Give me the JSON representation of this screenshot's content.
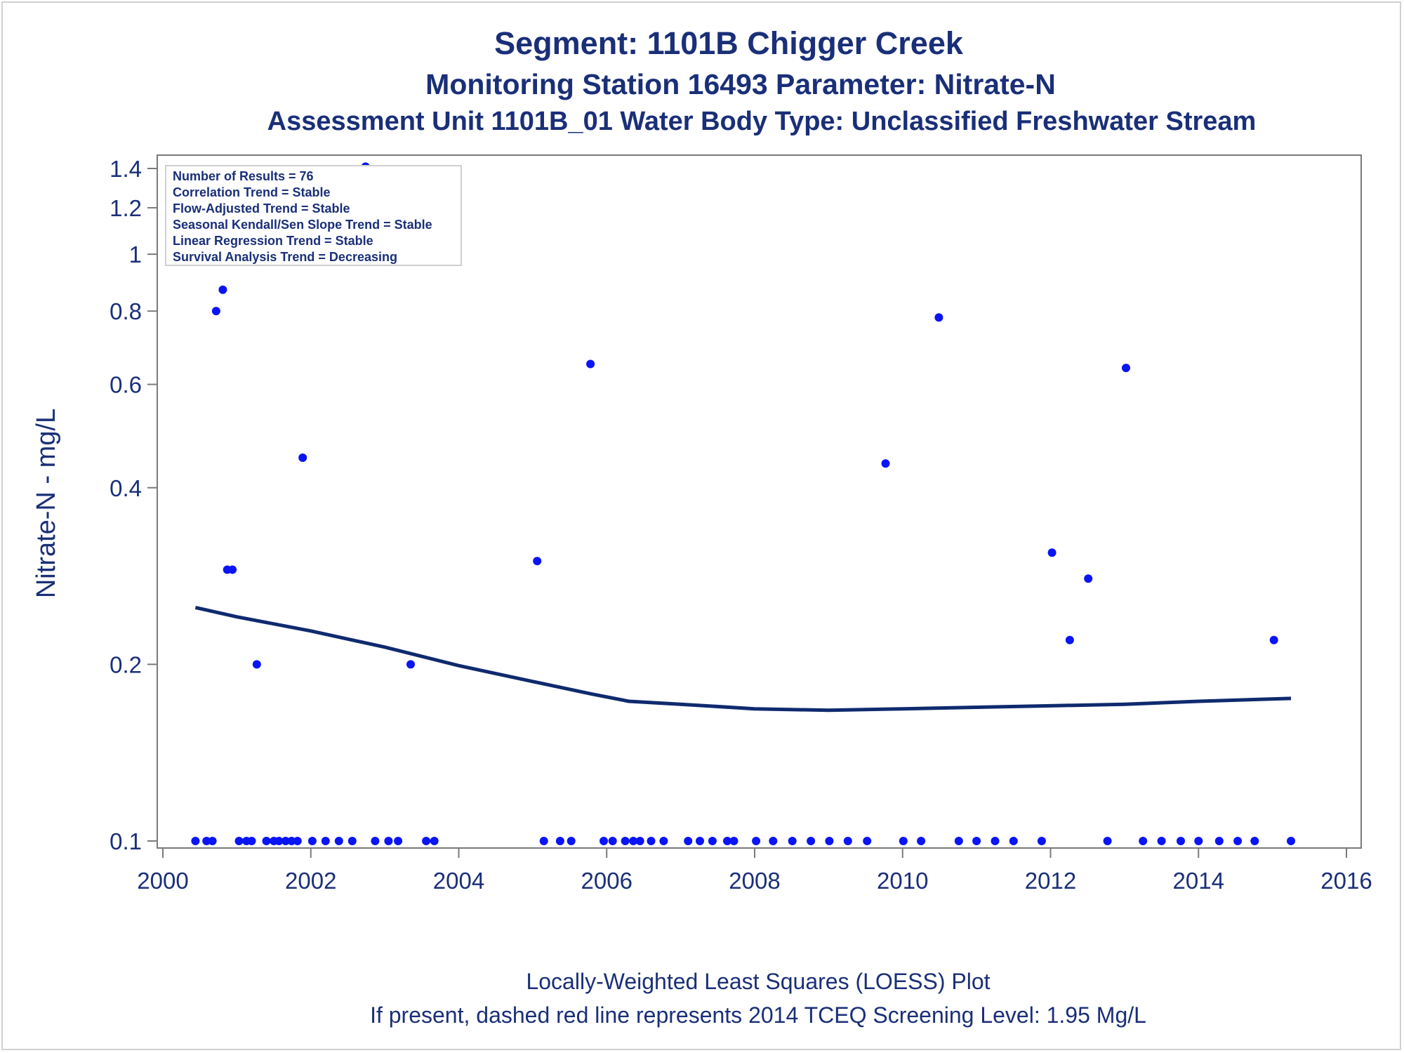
{
  "titles": {
    "line1": "Segment: 1101B  Chigger Creek",
    "line2": "Monitoring Station 16493 Parameter: Nitrate-N",
    "line3": "Assessment Unit 1101B_01   Water Body Type: Unclassified Freshwater Stream"
  },
  "footnotes": {
    "line1": "Locally-Weighted Least Squares (LOESS) Plot",
    "line2": "If present, dashed red line represents 2014 TCEQ Screening Level: 1.95 Mg/L"
  },
  "stats_box": [
    "Number of Results = 76",
    "Correlation Trend = Stable",
    "Flow-Adjusted Trend = Stable",
    "Seasonal Kendall/Sen Slope Trend = Stable",
    "Linear Regression Trend = Stable",
    "Survival Analysis Trend = Decreasing"
  ],
  "colors": {
    "points": "#0a14f5",
    "loess": "#0f2a6e",
    "text": "#1a2f78",
    "axis": "#7a7a7a"
  },
  "chart_data": {
    "type": "scatter",
    "ylabel": "Nitrate-N - mg/L",
    "xlabel": "",
    "x_scale": "linear",
    "y_scale": "log",
    "xlim": [
      2000,
      2016
    ],
    "ylim": [
      0.0975,
      1.45
    ],
    "x_ticks": [
      2000,
      2002,
      2004,
      2006,
      2008,
      2010,
      2012,
      2014,
      2016
    ],
    "y_ticks": [
      0.1,
      0.2,
      0.4,
      0.6,
      0.8,
      1,
      1.2,
      1.4
    ],
    "y_tick_labels": [
      "0.1",
      "0.2",
      "0.4",
      "0.6",
      "0.8",
      "1",
      "1.2",
      "1.4"
    ],
    "grid": false,
    "series": [
      {
        "type": "scatter",
        "points": [
          [
            2000.44,
            0.1
          ],
          [
            2000.59,
            0.1
          ],
          [
            2000.67,
            0.1
          ],
          [
            2000.72,
            0.8
          ],
          [
            2000.81,
            0.87
          ],
          [
            2000.87,
            0.29
          ],
          [
            2000.94,
            0.29
          ],
          [
            2001.03,
            0.1
          ],
          [
            2001.13,
            0.1
          ],
          [
            2001.2,
            0.1
          ],
          [
            2001.27,
            0.2
          ],
          [
            2001.4,
            0.1
          ],
          [
            2001.5,
            0.1
          ],
          [
            2001.57,
            0.1
          ],
          [
            2001.66,
            0.1
          ],
          [
            2001.74,
            0.1
          ],
          [
            2001.82,
            0.1
          ],
          [
            2001.89,
            0.45
          ],
          [
            2002.02,
            0.1
          ],
          [
            2002.2,
            0.1
          ],
          [
            2002.38,
            0.1
          ],
          [
            2002.56,
            0.1
          ],
          [
            2002.74,
            1.41
          ],
          [
            2002.87,
            0.1
          ],
          [
            2003.05,
            0.1
          ],
          [
            2003.18,
            0.1
          ],
          [
            2003.35,
            0.2
          ],
          [
            2003.56,
            0.1
          ],
          [
            2003.67,
            0.1
          ],
          [
            2005.06,
            0.3
          ],
          [
            2005.15,
            0.1
          ],
          [
            2005.37,
            0.1
          ],
          [
            2005.52,
            0.1
          ],
          [
            2005.78,
            0.65
          ],
          [
            2005.96,
            0.1
          ],
          [
            2006.08,
            0.1
          ],
          [
            2006.25,
            0.1
          ],
          [
            2006.36,
            0.1
          ],
          [
            2006.45,
            0.1
          ],
          [
            2006.6,
            0.1
          ],
          [
            2006.77,
            0.1
          ],
          [
            2007.1,
            0.1
          ],
          [
            2007.26,
            0.1
          ],
          [
            2007.43,
            0.1
          ],
          [
            2007.63,
            0.1
          ],
          [
            2007.72,
            0.1
          ],
          [
            2008.02,
            0.1
          ],
          [
            2008.25,
            0.1
          ],
          [
            2008.51,
            0.1
          ],
          [
            2008.76,
            0.1
          ],
          [
            2009.01,
            0.1
          ],
          [
            2009.26,
            0.1
          ],
          [
            2009.52,
            0.1
          ],
          [
            2009.77,
            0.44
          ],
          [
            2010.01,
            0.1
          ],
          [
            2010.25,
            0.1
          ],
          [
            2010.49,
            0.78
          ],
          [
            2010.76,
            0.1
          ],
          [
            2011.0,
            0.1
          ],
          [
            2011.25,
            0.1
          ],
          [
            2011.5,
            0.1
          ],
          [
            2011.88,
            0.1
          ],
          [
            2012.02,
            0.31
          ],
          [
            2012.26,
            0.22
          ],
          [
            2012.51,
            0.28
          ],
          [
            2012.77,
            0.1
          ],
          [
            2013.02,
            0.64
          ],
          [
            2013.25,
            0.1
          ],
          [
            2013.5,
            0.1
          ],
          [
            2013.76,
            0.1
          ],
          [
            2014.0,
            0.1
          ],
          [
            2014.28,
            0.1
          ],
          [
            2014.53,
            0.1
          ],
          [
            2014.76,
            0.1
          ],
          [
            2015.02,
            0.22
          ],
          [
            2015.25,
            0.1
          ]
        ]
      },
      {
        "type": "line",
        "points": [
          [
            2000.44,
            0.25
          ],
          [
            2001.0,
            0.241
          ],
          [
            2002.0,
            0.228
          ],
          [
            2003.0,
            0.214
          ],
          [
            2004.0,
            0.199
          ],
          [
            2005.0,
            0.187
          ],
          [
            2005.8,
            0.178
          ],
          [
            2006.3,
            0.173
          ],
          [
            2007.0,
            0.171
          ],
          [
            2008.0,
            0.168
          ],
          [
            2009.0,
            0.167
          ],
          [
            2010.0,
            0.168
          ],
          [
            2011.0,
            0.169
          ],
          [
            2012.0,
            0.17
          ],
          [
            2013.0,
            0.171
          ],
          [
            2014.0,
            0.173
          ],
          [
            2015.25,
            0.175
          ]
        ]
      }
    ]
  }
}
